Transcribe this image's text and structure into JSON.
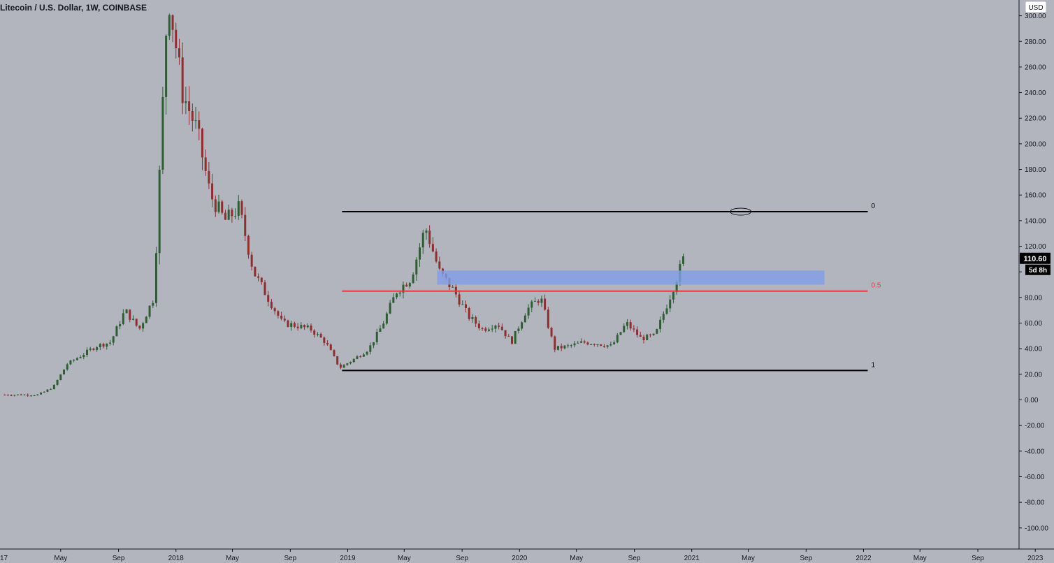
{
  "header": {
    "symbol_title": "Litecoin / U.S. Dollar, 1W, COINBASE",
    "currency": "USD"
  },
  "price_badge": {
    "last_price": "110.60",
    "countdown": "5d 8h",
    "last_value": 110.6
  },
  "colors": {
    "background": "#b2b5be",
    "up": "#2e5d34",
    "down": "#8c2f2f",
    "fib_line": "#000000",
    "fib_mid": "#f23645",
    "zone": "#7f9fe8"
  },
  "chart_data": {
    "type": "candlestick",
    "title": "Litecoin / U.S. Dollar, 1W, COINBASE",
    "ylabel": "USD",
    "ylim": [
      -120,
      310
    ],
    "yticks": [
      "300.00",
      "280.00",
      "260.00",
      "240.00",
      "220.00",
      "200.00",
      "180.00",
      "160.00",
      "140.00",
      "120.00",
      "100.00",
      "80.00",
      "60.00",
      "40.00",
      "20.00",
      "0.00",
      "-20.00",
      "-40.00",
      "-60.00",
      "-80.00",
      "-100.00"
    ],
    "x_start_label": "17",
    "xticks": [
      "May",
      "Sep",
      "2018",
      "May",
      "Sep",
      "2019",
      "May",
      "Sep",
      "2020",
      "May",
      "Sep",
      "2021",
      "May",
      "Sep",
      "2022",
      "May",
      "Sep",
      "2023"
    ],
    "xtick_dates": [
      "2017-05",
      "2017-09",
      "2018-01",
      "2018-05",
      "2018-09",
      "2019-01",
      "2019-05",
      "2019-09",
      "2020-01",
      "2020-05",
      "2020-09",
      "2021-01",
      "2021-05",
      "2021-09",
      "2022-01",
      "2022-05",
      "2022-09",
      "2023-01"
    ],
    "series_close_path": [
      [
        "2017-01",
        4
      ],
      [
        "2017-03",
        4
      ],
      [
        "2017-04",
        10
      ],
      [
        "2017-05",
        28
      ],
      [
        "2017-06",
        35
      ],
      [
        "2017-07",
        42
      ],
      [
        "2017-08",
        45
      ],
      [
        "2017-09",
        70
      ],
      [
        "2017-10",
        55
      ],
      [
        "2017-11",
        80
      ],
      [
        "2017-12",
        320
      ],
      [
        "2018-01",
        240
      ],
      [
        "2018-02",
        210
      ],
      [
        "2018-03",
        160
      ],
      [
        "2018-04",
        140
      ],
      [
        "2018-05",
        150
      ],
      [
        "2018-06",
        100
      ],
      [
        "2018-07",
        80
      ],
      [
        "2018-08",
        60
      ],
      [
        "2018-09",
        58
      ],
      [
        "2018-10",
        55
      ],
      [
        "2018-11",
        45
      ],
      [
        "2018-12",
        25
      ],
      [
        "2019-01",
        32
      ],
      [
        "2019-02",
        40
      ],
      [
        "2019-03",
        58
      ],
      [
        "2019-04",
        85
      ],
      [
        "2019-05",
        95
      ],
      [
        "2019-06",
        135
      ],
      [
        "2019-07",
        100
      ],
      [
        "2019-08",
        85
      ],
      [
        "2019-09",
        65
      ],
      [
        "2019-10",
        55
      ],
      [
        "2019-11",
        60
      ],
      [
        "2019-12",
        45
      ],
      [
        "2020-01",
        70
      ],
      [
        "2020-02",
        80
      ],
      [
        "2020-03",
        40
      ],
      [
        "2020-04",
        42
      ],
      [
        "2020-05",
        45
      ],
      [
        "2020-06",
        44
      ],
      [
        "2020-07",
        42
      ],
      [
        "2020-08",
        60
      ],
      [
        "2020-09",
        48
      ],
      [
        "2020-10",
        50
      ],
      [
        "2020-11",
        80
      ],
      [
        "2020-12",
        110.6
      ]
    ],
    "fib_levels": [
      {
        "label": "0",
        "value": 147,
        "from": "2018-12",
        "to": "2022-01"
      },
      {
        "label": "0.5",
        "value": 85,
        "from": "2018-12",
        "to": "2022-01"
      },
      {
        "label": "1",
        "value": 23,
        "from": "2018-12",
        "to": "2022-01"
      }
    ],
    "zone": {
      "from": "2019-07",
      "to": "2021-10",
      "low": 90,
      "high": 101
    },
    "annotation_ellipse": {
      "date": "2021-04",
      "value": 147
    },
    "grid": false
  }
}
